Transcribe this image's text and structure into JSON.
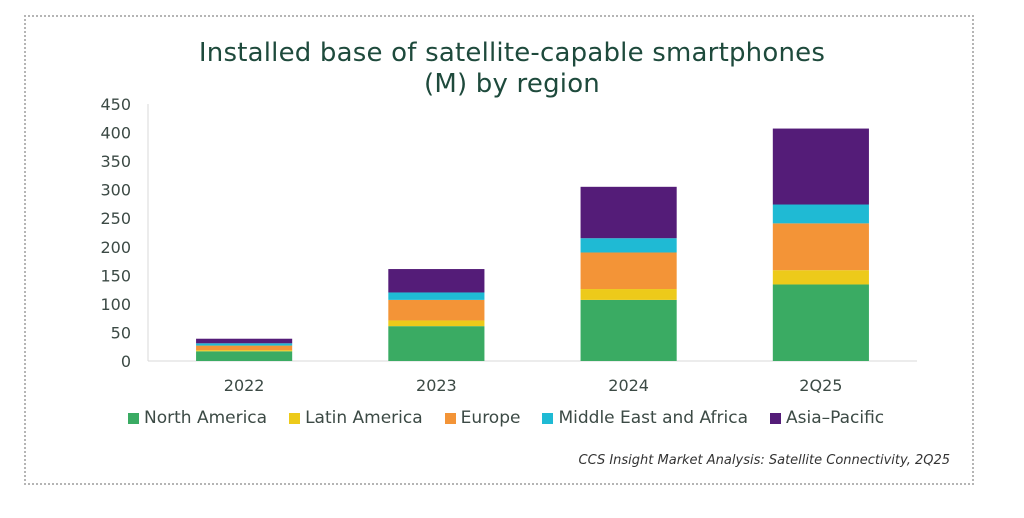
{
  "chart_data": {
    "type": "bar",
    "stacked": true,
    "title": "Installed base of satellite-capable smartphones (M) by region",
    "title_lines": [
      "Installed base of satellite-capable smartphones",
      "(M) by region"
    ],
    "xlabel": "",
    "ylabel": "",
    "ylim": [
      0,
      450
    ],
    "yticks": [
      0,
      50,
      100,
      150,
      200,
      250,
      300,
      350,
      400,
      450
    ],
    "grid": false,
    "legend_position": "bottom",
    "categories": [
      "2022",
      "2023",
      "2024",
      "2Q25"
    ],
    "series": [
      {
        "name": "North America",
        "color": "#3aab63",
        "values": [
          17,
          61,
          107,
          134
        ]
      },
      {
        "name": "Latin America",
        "color": "#edca1a",
        "values": [
          2,
          10,
          19,
          25
        ]
      },
      {
        "name": "Europe",
        "color": "#f39437",
        "values": [
          8,
          36,
          64,
          82
        ]
      },
      {
        "name": "Middle East and Africa",
        "color": "#1fbad4",
        "values": [
          4,
          13,
          25,
          33
        ]
      },
      {
        "name": "Asia–Pacific",
        "color": "#541c78",
        "values": [
          8,
          41,
          90,
          133
        ]
      }
    ],
    "source": "CCS Insight Market Analysis: Satellite Connectivity, 2Q25"
  }
}
